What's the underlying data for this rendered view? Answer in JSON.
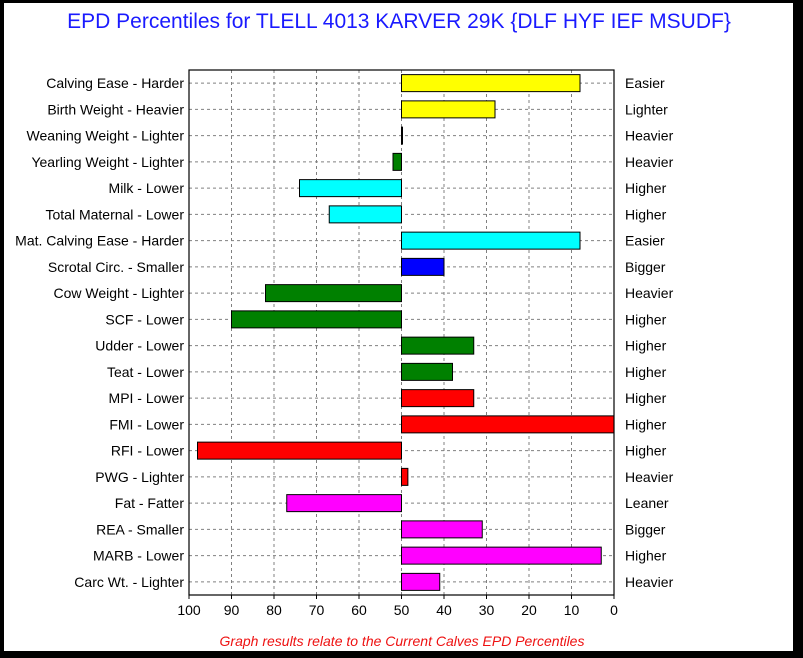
{
  "chart_data": {
    "type": "bar",
    "orientation": "horizontal",
    "title": "EPD Percentiles for TLELL 4013 KARVER 29K {DLF HYF IEF MSUDF}",
    "footnote": "Graph results relate to the Current Calves EPD Percentiles",
    "x_axis": {
      "min": 0,
      "max": 100,
      "reversed": true,
      "baseline": 50,
      "ticks": [
        100,
        90,
        80,
        70,
        60,
        50,
        40,
        30,
        20,
        10,
        0
      ]
    },
    "grid": true,
    "categories": [
      {
        "left": "Calving Ease - Harder",
        "right": "Easier",
        "value": 8,
        "color": "#ffff00"
      },
      {
        "left": "Birth Weight - Heavier",
        "right": "Lighter",
        "value": 28,
        "color": "#ffff00"
      },
      {
        "left": "Weaning Weight - Lighter",
        "right": "Heavier",
        "value": 50,
        "color": "#ffff00"
      },
      {
        "left": "Yearling Weight - Lighter",
        "right": "Heavier",
        "value": 52,
        "color": "#008000"
      },
      {
        "left": "Milk - Lower",
        "right": "Higher",
        "value": 74,
        "color": "#00ffff"
      },
      {
        "left": "Total Maternal - Lower",
        "right": "Higher",
        "value": 67,
        "color": "#00ffff"
      },
      {
        "left": "Mat. Calving Ease - Harder",
        "right": "Easier",
        "value": 8,
        "color": "#00ffff"
      },
      {
        "left": "Scrotal Circ. - Smaller",
        "right": "Bigger",
        "value": 40,
        "color": "#0000ff"
      },
      {
        "left": "Cow Weight - Lighter",
        "right": "Heavier",
        "value": 82,
        "color": "#008000"
      },
      {
        "left": "SCF - Lower",
        "right": "Higher",
        "value": 90,
        "color": "#008000"
      },
      {
        "left": "Udder - Lower",
        "right": "Higher",
        "value": 33,
        "color": "#008000"
      },
      {
        "left": "Teat - Lower",
        "right": "Higher",
        "value": 38,
        "color": "#008000"
      },
      {
        "left": "MPI - Lower",
        "right": "Higher",
        "value": 33,
        "color": "#ff0000"
      },
      {
        "left": "FMI - Lower",
        "right": "Higher",
        "value": 0,
        "color": "#ff0000"
      },
      {
        "left": "RFI - Lower",
        "right": "Higher",
        "value": 98,
        "color": "#ff0000"
      },
      {
        "left": "PWG - Lighter",
        "right": "Heavier",
        "value": 48.5,
        "color": "#ff0000"
      },
      {
        "left": "Fat - Fatter",
        "right": "Leaner",
        "value": 77,
        "color": "#ff00ff"
      },
      {
        "left": "REA - Smaller",
        "right": "Bigger",
        "value": 31,
        "color": "#ff00ff"
      },
      {
        "left": "MARB - Lower",
        "right": "Higher",
        "value": 3,
        "color": "#ff00ff"
      },
      {
        "left": "Carc Wt. - Lighter",
        "right": "Heavier",
        "value": 41,
        "color": "#ff00ff"
      }
    ]
  }
}
